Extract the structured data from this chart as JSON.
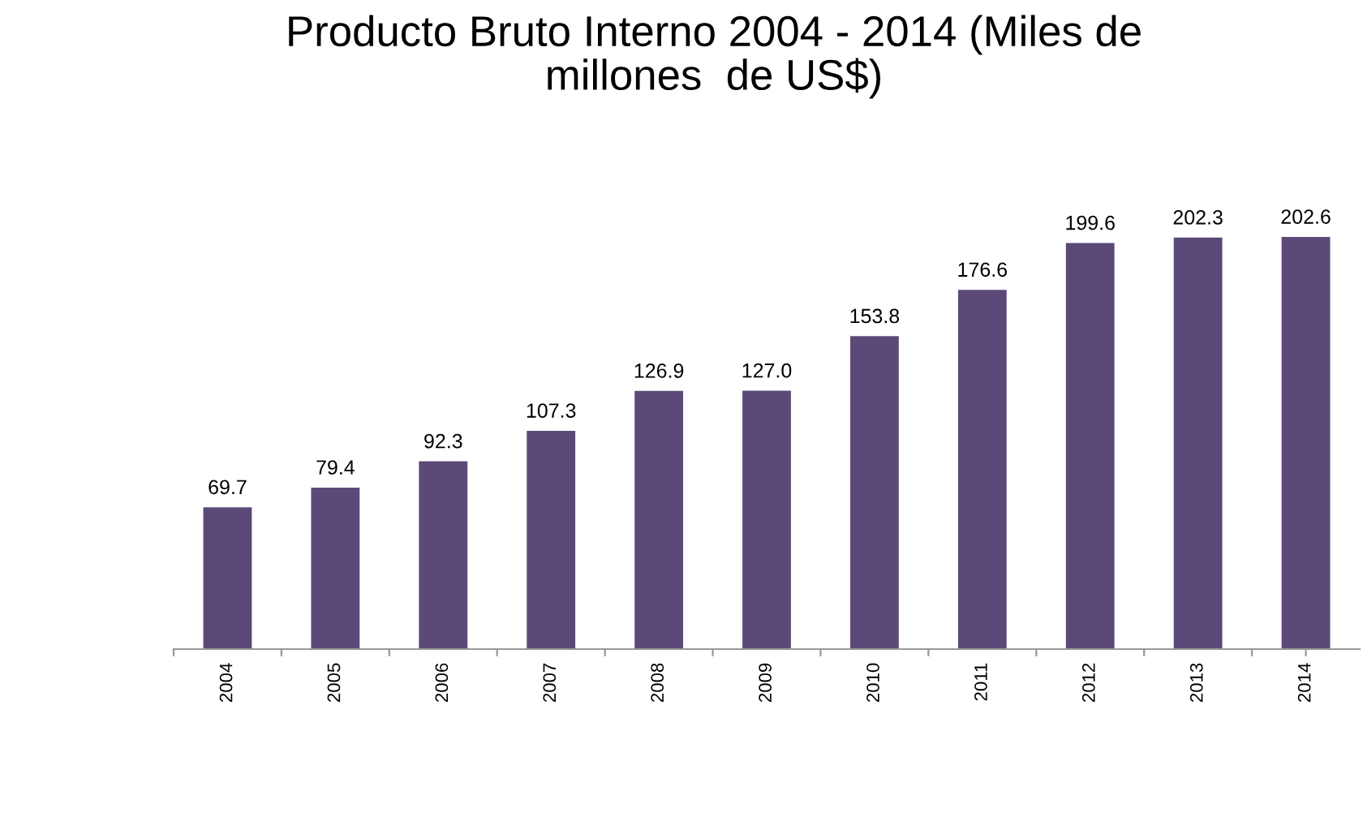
{
  "chart_data": {
    "type": "bar",
    "title": "Producto Bruto Interno 2004 - 2014 (Miles de\nmillones  de US$)",
    "categories": [
      "2004",
      "2005",
      "2006",
      "2007",
      "2008",
      "2009",
      "2010",
      "2011",
      "2012",
      "2013",
      "2014"
    ],
    "values": [
      69.7,
      79.4,
      92.3,
      107.3,
      126.9,
      127.0,
      153.8,
      176.6,
      199.6,
      202.3,
      202.6
    ],
    "value_labels": [
      "69.7",
      "79.4",
      "92.3",
      "107.3",
      "126.9",
      "127.0",
      "153.8",
      "176.6",
      "199.6",
      "202.3",
      "202.6"
    ],
    "color": "#5b4a78",
    "grid": false,
    "legend": false
  }
}
